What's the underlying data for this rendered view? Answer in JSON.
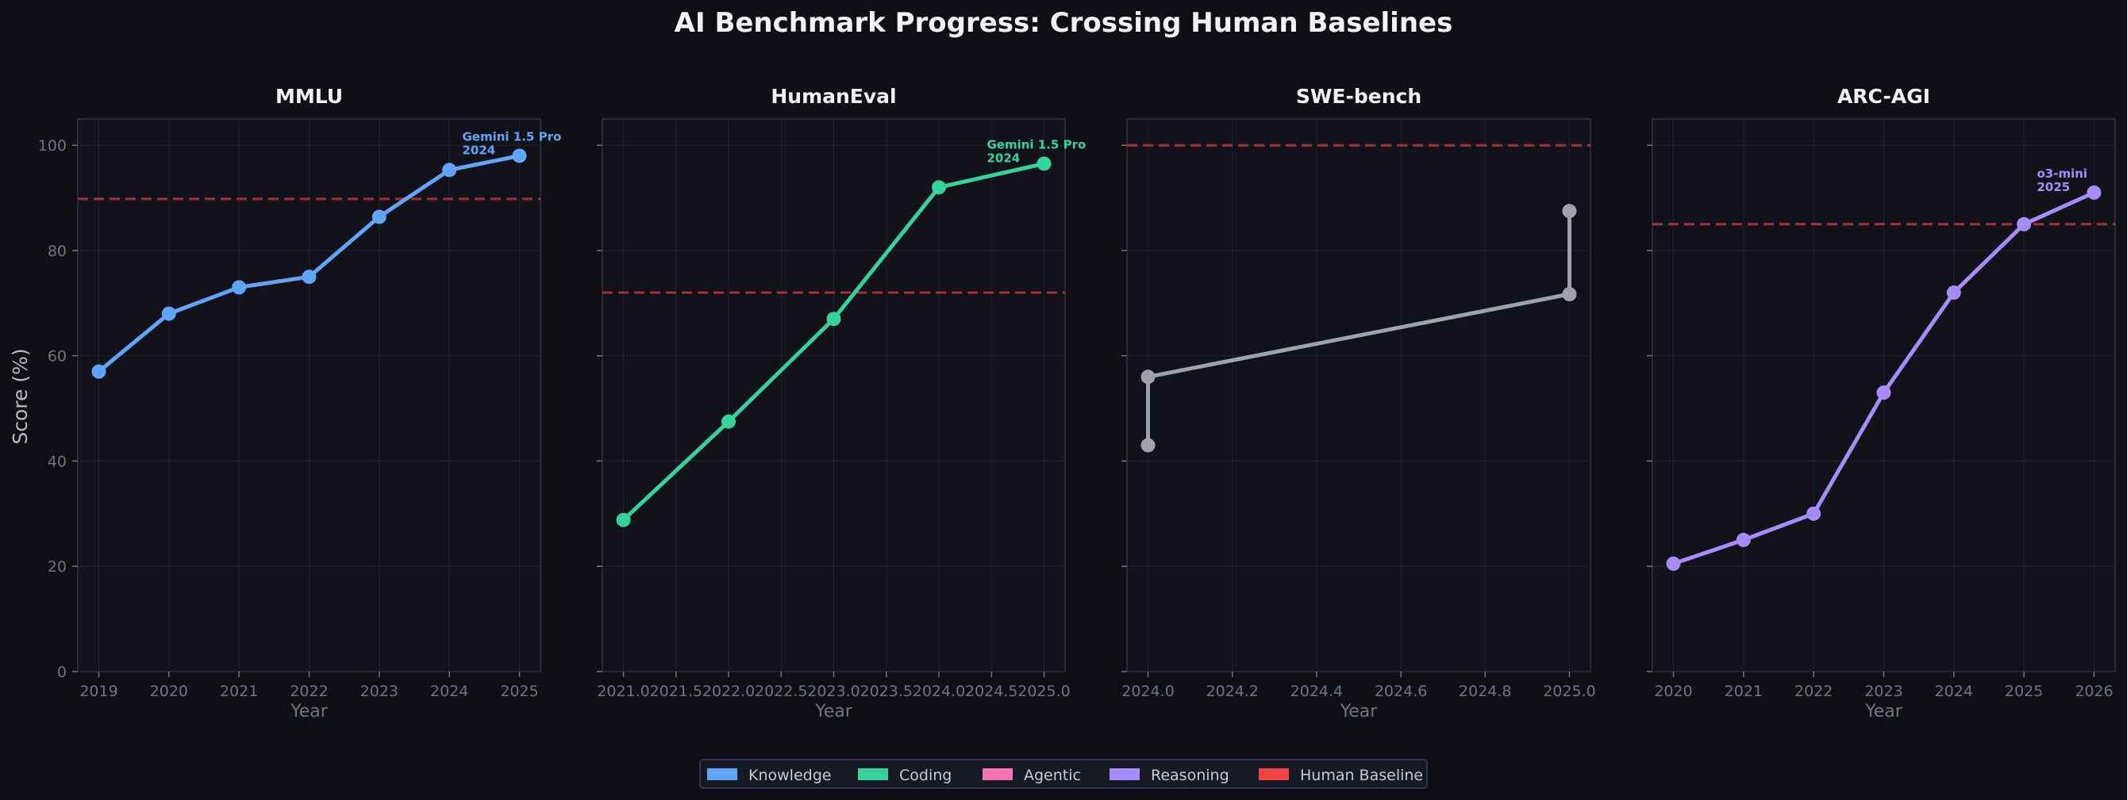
{
  "chart_data": {
    "type": "line",
    "title": "AI Benchmark Progress: Crossing Human Baselines",
    "ylabel": "Score (%)",
    "xlabel": "Year",
    "ylim": [
      0,
      105
    ],
    "yticks": [
      0,
      20,
      40,
      60,
      80,
      100
    ],
    "grid": true,
    "legend_position": "bottom-center",
    "legend": [
      {
        "label": "Knowledge",
        "color": "#60a5fa"
      },
      {
        "label": "Coding",
        "color": "#34d399"
      },
      {
        "label": "Agentic",
        "color": "#f472b6"
      },
      {
        "label": "Reasoning",
        "color": "#a78bfa"
      },
      {
        "label": "Human Baseline",
        "color": "#ef4444"
      }
    ],
    "panels": [
      {
        "title": "MMLU",
        "color": "#60a5fa",
        "xlim": [
          2018.7,
          2025.3
        ],
        "xticks": [
          2019,
          2020,
          2021,
          2022,
          2023,
          2024,
          2025
        ],
        "xtick_labels": [
          "2019",
          "2020",
          "2021",
          "2022",
          "2023",
          "2024",
          "2025"
        ],
        "baseline": 89.8,
        "points": [
          [
            2019,
            57
          ],
          [
            2020,
            68
          ],
          [
            2021,
            73
          ],
          [
            2022,
            75
          ],
          [
            2023,
            86.4
          ],
          [
            2024,
            95.3
          ],
          [
            2025,
            98
          ]
        ],
        "annotation": {
          "x": 2025,
          "y": 98,
          "lines": [
            "Gemini 1.5 Pro",
            "2024"
          ]
        }
      },
      {
        "title": "HumanEval",
        "color": "#34d399",
        "xlim": [
          2020.8,
          2025.2
        ],
        "xticks": [
          2021.0,
          2021.5,
          2022.0,
          2022.5,
          2023.0,
          2023.5,
          2024.0,
          2024.5,
          2025.0
        ],
        "xtick_labels": [
          "2021.0",
          "2021.5",
          "2022.0",
          "2022.5",
          "2023.0",
          "2023.5",
          "2024.0",
          "2024.5",
          "2025.0"
        ],
        "baseline": 72,
        "points": [
          [
            2021,
            28.8
          ],
          [
            2022,
            47.5
          ],
          [
            2023,
            67
          ],
          [
            2024,
            92
          ],
          [
            2025,
            96.5
          ]
        ],
        "annotation": {
          "x": 2025,
          "y": 96.5,
          "lines": [
            "Gemini 1.5 Pro",
            "2024"
          ]
        }
      },
      {
        "title": "SWE-bench",
        "color": "#9ca3af",
        "xlim": [
          2023.95,
          2025.05
        ],
        "xticks": [
          2024.0,
          2024.2,
          2024.4,
          2024.6,
          2024.8,
          2025.0
        ],
        "xtick_labels": [
          "2024.0",
          "2024.2",
          "2024.4",
          "2024.6",
          "2024.8",
          "2025.0"
        ],
        "baseline": 100,
        "points": [
          [
            2024,
            43
          ],
          [
            2024,
            56
          ],
          [
            2025,
            71.7
          ],
          [
            2025,
            87.5
          ]
        ]
      },
      {
        "title": "ARC-AGI",
        "color": "#a78bfa",
        "xlim": [
          2019.7,
          2026.3
        ],
        "xticks": [
          2020,
          2021,
          2022,
          2023,
          2024,
          2025,
          2026
        ],
        "xtick_labels": [
          "2020",
          "2021",
          "2022",
          "2023",
          "2024",
          "2025",
          "2026"
        ],
        "baseline": 85,
        "points": [
          [
            2020,
            20.5
          ],
          [
            2021,
            25
          ],
          [
            2022,
            30
          ],
          [
            2023,
            53
          ],
          [
            2024,
            72
          ],
          [
            2025,
            85
          ],
          [
            2026,
            91
          ]
        ],
        "annotation": {
          "x": 2026,
          "y": 91,
          "lines": [
            "o3-mini",
            "2025"
          ]
        }
      }
    ]
  }
}
